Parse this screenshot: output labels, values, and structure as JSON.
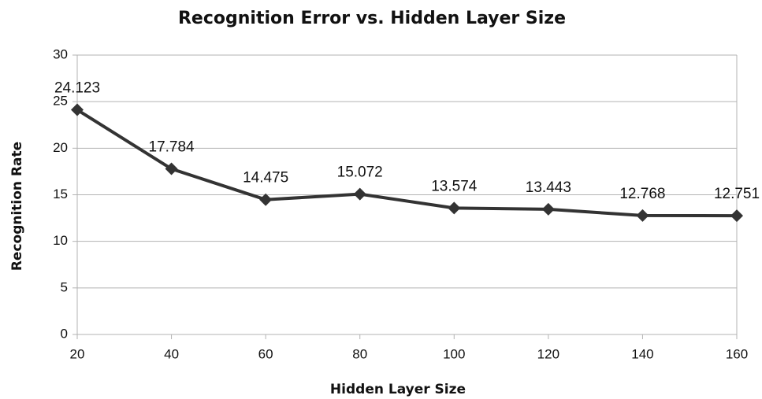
{
  "chart_data": {
    "type": "line",
    "title": "Recognition Error vs. Hidden Layer Size",
    "x_label": "Hidden Layer Size",
    "y_label": "Recognition Rate",
    "x": [
      20,
      40,
      60,
      80,
      100,
      120,
      140,
      160
    ],
    "series": [
      {
        "name": "Recognition Rate",
        "color": "#333333",
        "values": [
          24.123,
          17.784,
          14.475,
          15.072,
          13.574,
          13.443,
          12.768,
          12.751
        ]
      }
    ],
    "xlim": [
      20,
      160
    ],
    "xticks": [
      20,
      40,
      60,
      80,
      100,
      120,
      140,
      160
    ],
    "ylim": [
      0,
      30
    ],
    "yticks": [
      0,
      5,
      10,
      15,
      20,
      25,
      30
    ],
    "grid": true
  }
}
